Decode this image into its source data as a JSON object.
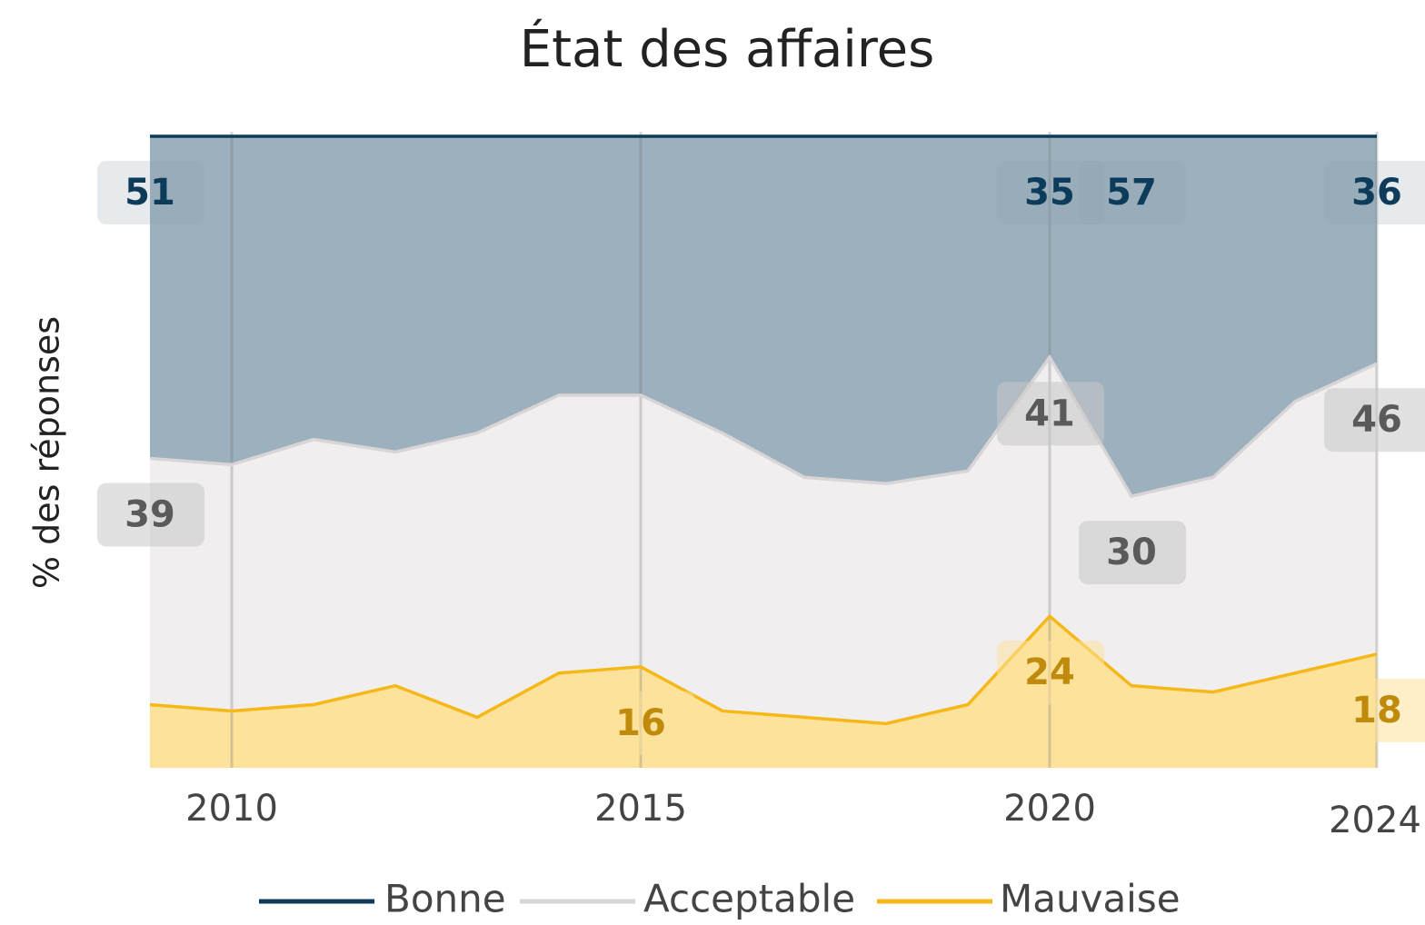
{
  "chart_data": {
    "type": "stacked-area",
    "title": "État des affaires",
    "y_label": "% des réponses",
    "x": [
      2009,
      2010,
      2011,
      2012,
      2013,
      2014,
      2015,
      2016,
      2017,
      2018,
      2019,
      2020,
      2021,
      2022,
      2023,
      2024
    ],
    "xlim": [
      2009,
      2024
    ],
    "xticks": [
      2010,
      2015,
      2020,
      2024
    ],
    "ylim": [
      0,
      100
    ],
    "grid": true,
    "legend": "bottom",
    "series": [
      {
        "name": "Mauvaise",
        "color": "#f5b818",
        "fill": "#fde29c",
        "label_color": "#c08a0c",
        "label_bg": "rgba(253,226,156,0.55)",
        "values": [
          10,
          9,
          10,
          13,
          8,
          15,
          16,
          9,
          8,
          7,
          10,
          24,
          13,
          12,
          15,
          18
        ],
        "value_labels": [
          null,
          null,
          null,
          null,
          null,
          null,
          "16",
          null,
          null,
          null,
          null,
          "24",
          null,
          null,
          null,
          "18"
        ]
      },
      {
        "name": "Acceptable",
        "color": "#d9d5d7",
        "fill": "#f0eeef",
        "label_color": "#5a5a5a",
        "label_bg": "rgba(200,200,200,0.55)",
        "values": [
          39,
          39,
          42,
          37,
          45,
          44,
          43,
          44,
          38,
          38,
          37,
          41,
          30,
          34,
          43,
          46
        ],
        "value_labels": [
          "39",
          null,
          null,
          null,
          null,
          null,
          null,
          null,
          null,
          null,
          null,
          "41",
          "30",
          null,
          null,
          "46"
        ]
      },
      {
        "name": "Bonne",
        "color": "#0d3b5a",
        "fill": "#9cb0bd",
        "label_color": "#0d3b5a",
        "label_bg": "rgba(140,160,175,0.22)",
        "values": [
          51,
          52,
          48,
          50,
          47,
          41,
          41,
          47,
          54,
          55,
          53,
          35,
          57,
          54,
          42,
          36
        ],
        "value_labels": [
          "51",
          null,
          null,
          null,
          null,
          null,
          null,
          null,
          null,
          null,
          null,
          "35",
          "57",
          null,
          null,
          "36"
        ]
      }
    ]
  }
}
